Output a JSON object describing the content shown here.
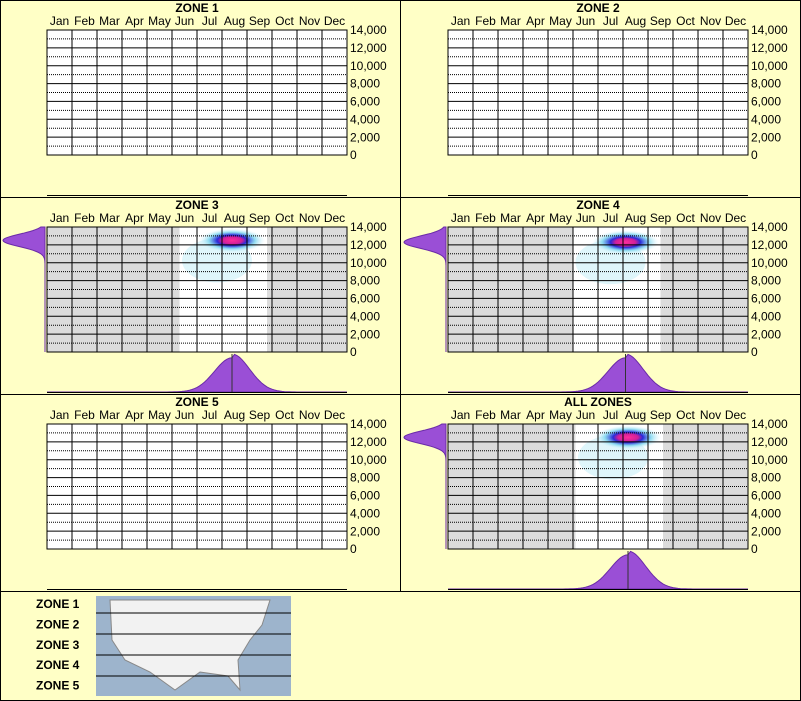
{
  "chart_data": [
    {
      "type": "heatmap",
      "title": "ZONE 1",
      "categories": [
        "Jan",
        "Feb",
        "Mar",
        "Apr",
        "May",
        "Jun",
        "Jul",
        "Aug",
        "Sep",
        "Oct",
        "Nov",
        "Dec"
      ],
      "ylim": [
        0,
        14000
      ],
      "yticks": [
        0,
        {
          "value": 2000,
          "label": "2,000"
        },
        {
          "value": 4000,
          "label": "4,000"
        },
        {
          "value": 6000,
          "label": "6,000"
        },
        {
          "value": 8000,
          "label": "8,000"
        },
        {
          "value": 10000,
          "label": "10,000"
        },
        {
          "value": 12000,
          "label": "12,000"
        },
        {
          "value": 14000,
          "label": "14,000"
        }
      ]
    },
    {
      "type": "heatmap",
      "title": "ZONE 2",
      "categories": [
        "Jan",
        "Feb",
        "Mar",
        "Apr",
        "May",
        "Jun",
        "Jul",
        "Aug",
        "Sep",
        "Oct",
        "Nov",
        "Dec"
      ],
      "ylim": [
        0,
        14000
      ],
      "yticks": [
        0,
        {
          "value": 2000,
          "label": "2,000"
        },
        {
          "value": 4000,
          "label": "4,000"
        },
        {
          "value": 6000,
          "label": "6,000"
        },
        {
          "value": 8000,
          "label": "8,000"
        },
        {
          "value": 10000,
          "label": "10,000"
        },
        {
          "value": 12000,
          "label": "12,000"
        },
        {
          "value": 14000,
          "label": "14,000"
        }
      ]
    },
    {
      "type": "heatmap",
      "title": "ZONE 3",
      "categories": [
        "Jan",
        "Feb",
        "Mar",
        "Apr",
        "May",
        "Jun",
        "Jul",
        "Aug",
        "Sep",
        "Oct",
        "Nov",
        "Dec"
      ],
      "ylim": [
        0,
        14000
      ],
      "yticks": [
        0,
        {
          "value": 2000,
          "label": "2,000"
        },
        {
          "value": 4000,
          "label": "4,000"
        },
        {
          "value": 6000,
          "label": "6,000"
        },
        {
          "value": 8000,
          "label": "8,000"
        },
        {
          "value": 10000,
          "label": "10,000"
        },
        {
          "value": 12000,
          "label": "12,000"
        },
        {
          "value": 14000,
          "label": "14,000"
        }
      ],
      "peak": {
        "month": 7.4,
        "elevation": 12500
      },
      "spread": {
        "month": 0.7,
        "elevation": 700
      }
    },
    {
      "type": "heatmap",
      "title": "ZONE 4",
      "categories": [
        "Jan",
        "Feb",
        "Mar",
        "Apr",
        "May",
        "Jun",
        "Jul",
        "Aug",
        "Sep",
        "Oct",
        "Nov",
        "Dec"
      ],
      "ylim": [
        0,
        14000
      ],
      "yticks": [
        0,
        {
          "value": 2000,
          "label": "2,000"
        },
        {
          "value": 4000,
          "label": "4,000"
        },
        {
          "value": 6000,
          "label": "6,000"
        },
        {
          "value": 8000,
          "label": "8,000"
        },
        {
          "value": 10000,
          "label": "10,000"
        },
        {
          "value": 12000,
          "label": "12,000"
        },
        {
          "value": 14000,
          "label": "14,000"
        }
      ],
      "peak": {
        "month": 7.1,
        "elevation": 12300
      },
      "spread": {
        "month": 0.7,
        "elevation": 700
      }
    },
    {
      "type": "heatmap",
      "title": "ZONE 5",
      "categories": [
        "Jan",
        "Feb",
        "Mar",
        "Apr",
        "May",
        "Jun",
        "Jul",
        "Aug",
        "Sep",
        "Oct",
        "Nov",
        "Dec"
      ],
      "ylim": [
        0,
        14000
      ],
      "yticks": [
        0,
        {
          "value": 2000,
          "label": "2,000"
        },
        {
          "value": 4000,
          "label": "4,000"
        },
        {
          "value": 6000,
          "label": "6,000"
        },
        {
          "value": 8000,
          "label": "8,000"
        },
        {
          "value": 10000,
          "label": "10,000"
        },
        {
          "value": 12000,
          "label": "12,000"
        },
        {
          "value": 14000,
          "label": "14,000"
        }
      ]
    },
    {
      "type": "heatmap",
      "title": "ALL ZONES",
      "categories": [
        "Jan",
        "Feb",
        "Mar",
        "Apr",
        "May",
        "Jun",
        "Jul",
        "Aug",
        "Sep",
        "Oct",
        "Nov",
        "Dec"
      ],
      "ylim": [
        0,
        14000
      ],
      "yticks": [
        0,
        {
          "value": 2000,
          "label": "2,000"
        },
        {
          "value": 4000,
          "label": "4,000"
        },
        {
          "value": 6000,
          "label": "6,000"
        },
        {
          "value": 8000,
          "label": "8,000"
        },
        {
          "value": 10000,
          "label": "10,000"
        },
        {
          "value": 12000,
          "label": "12,000"
        },
        {
          "value": 14000,
          "label": "14,000"
        }
      ],
      "peak": {
        "month": 7.2,
        "elevation": 12500
      },
      "spread": {
        "month": 0.7,
        "elevation": 700
      }
    }
  ],
  "legend": {
    "zones": [
      "ZONE 1",
      "ZONE 2",
      "ZONE 3",
      "ZONE 4",
      "ZONE 5"
    ]
  }
}
